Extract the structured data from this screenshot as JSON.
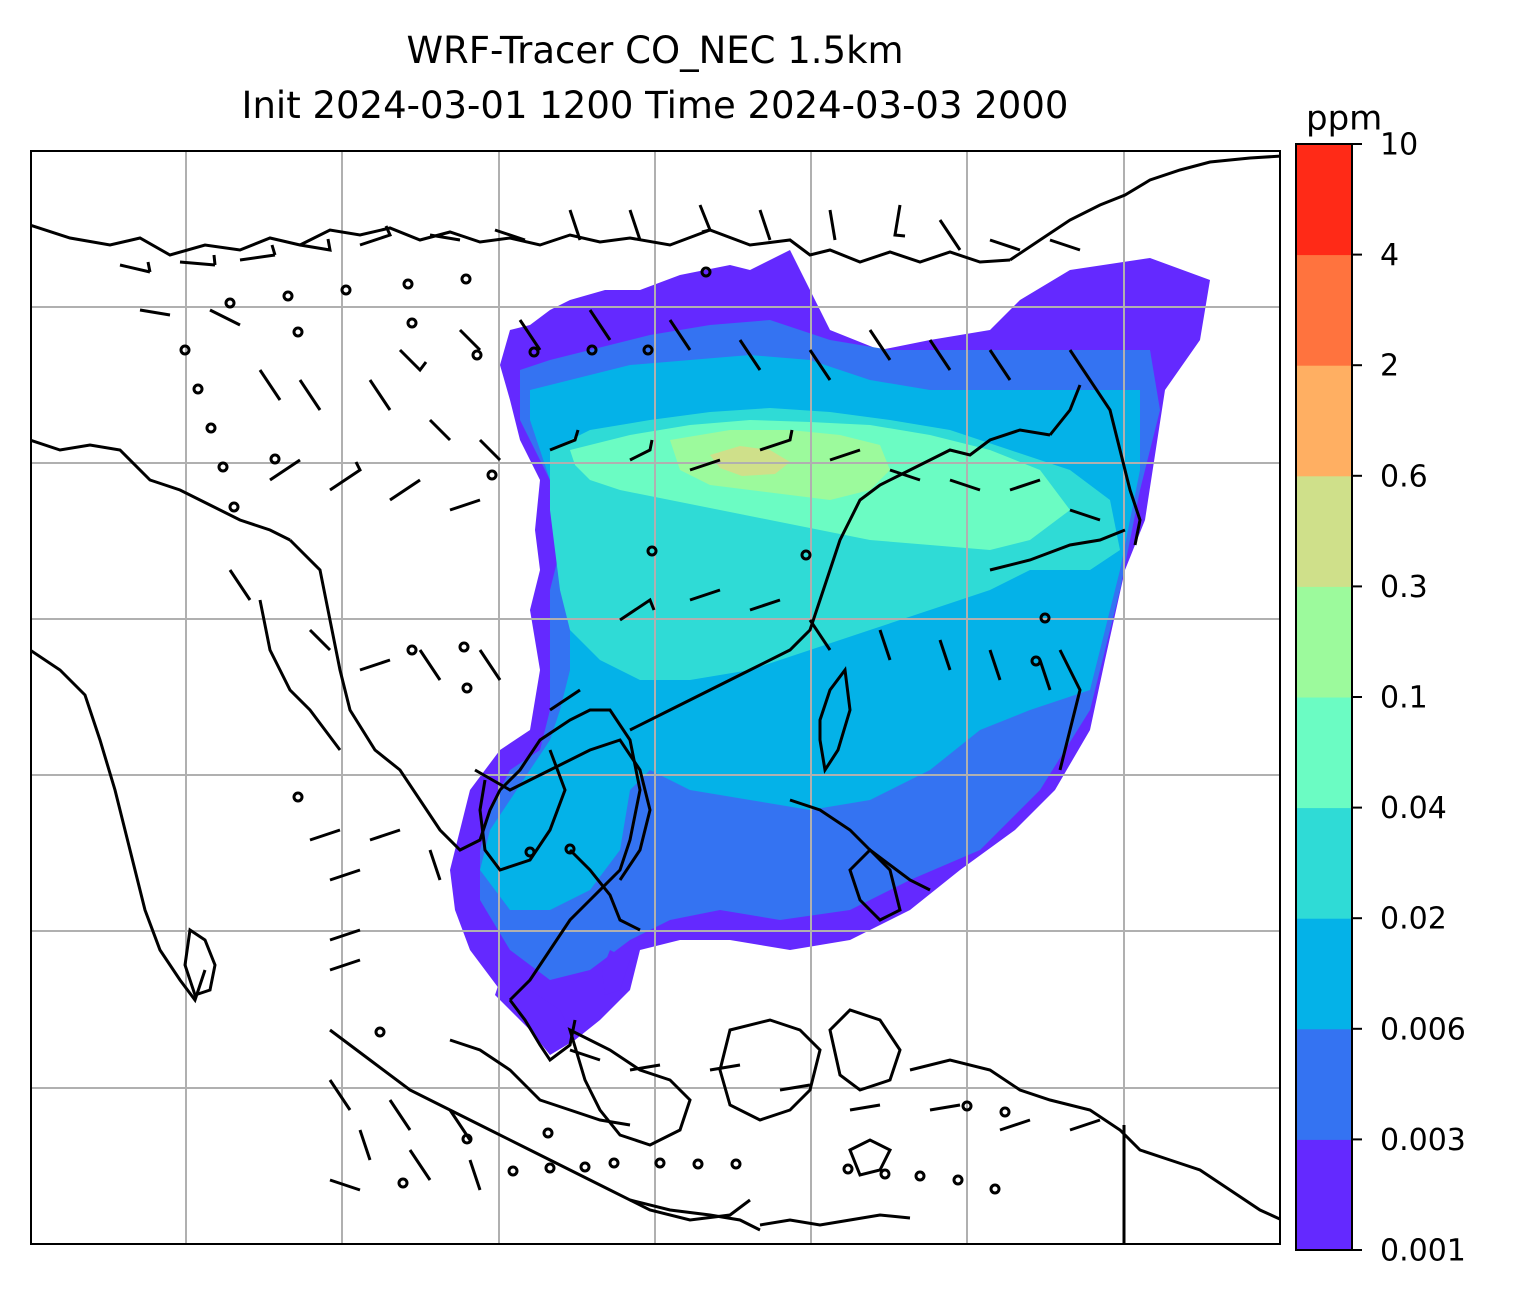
{
  "title": {
    "line1": "WRF-Tracer CO_NEC 1.5km",
    "line2": "Init 2024-03-01 1200 Time 2024-03-03 2000"
  },
  "colorbar": {
    "unit": "ppm",
    "levels": [
      "0.001",
      "0.003",
      "0.006",
      "0.02",
      "0.04",
      "0.1",
      "0.3",
      "0.6",
      "2",
      "4",
      "10"
    ],
    "colors": [
      "#6429ff",
      "#3473f2",
      "#04b2e8",
      "#2fdbd6",
      "#6bfcc3",
      "#9cfa9c",
      "#cfe08a",
      "#ffaf62",
      "#ff733e",
      "#ff2a17"
    ]
  },
  "map": {
    "gridlines": true,
    "features": [
      "coastlines",
      "country-borders",
      "wind-barbs",
      "tracer-concentration-fill"
    ]
  }
}
